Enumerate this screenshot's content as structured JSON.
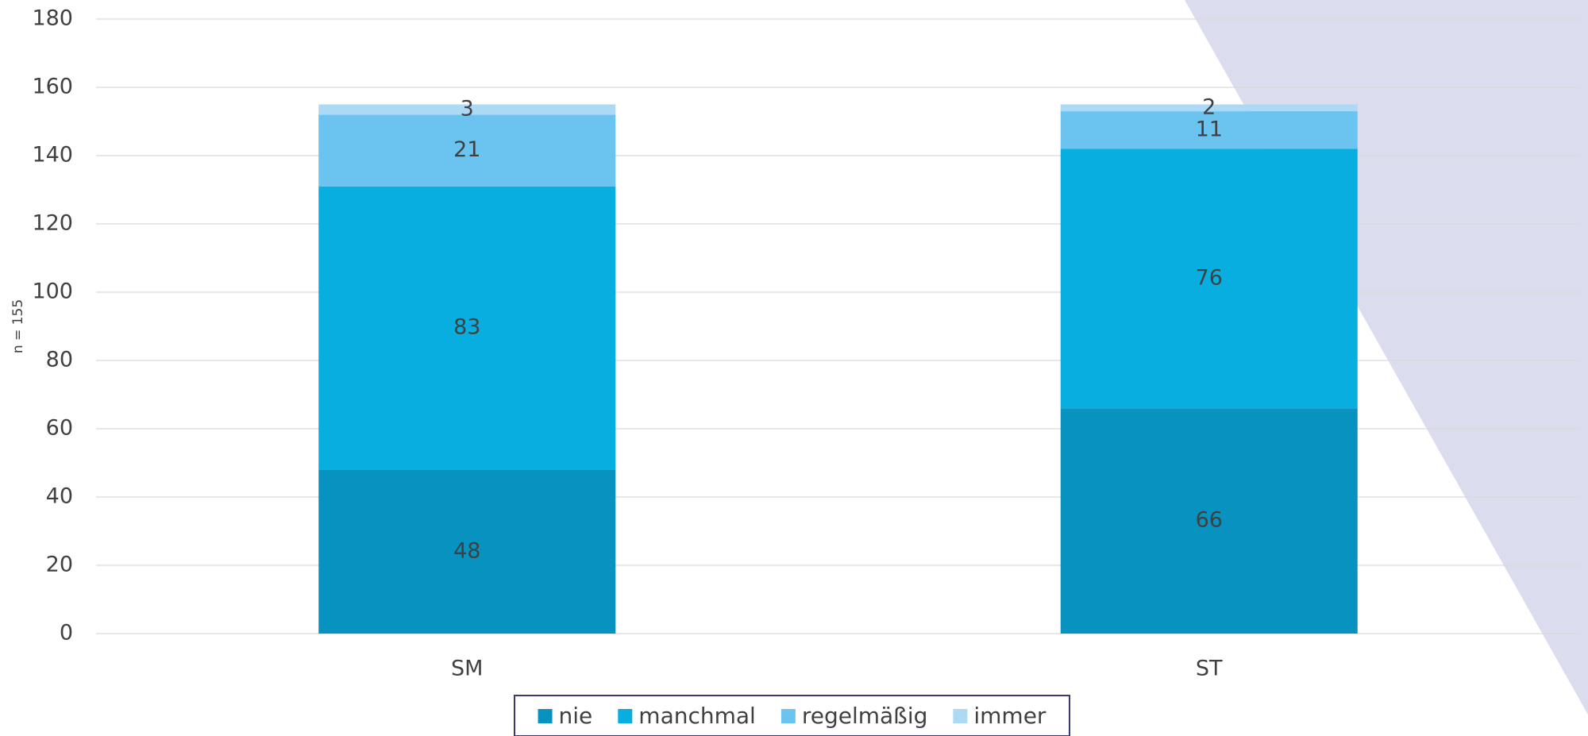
{
  "chart_data": {
    "type": "stacked_bar",
    "y_label": "n = 155",
    "categories": [
      "SM",
      "ST"
    ],
    "series": [
      {
        "name": "nie",
        "color": "#0792c0",
        "values": [
          48,
          66
        ]
      },
      {
        "name": "manchmal",
        "color": "#09aee0",
        "values": [
          83,
          76
        ]
      },
      {
        "name": "regelmäßig",
        "color": "#6bc4f0",
        "values": [
          21,
          11
        ]
      },
      {
        "name": "immer",
        "color": "#acdaf5",
        "values": [
          3,
          2
        ]
      }
    ],
    "ylim": [
      0,
      180
    ],
    "yticks": [
      0,
      20,
      40,
      60,
      80,
      100,
      120,
      140,
      160,
      180
    ],
    "grid": true,
    "legend": "bottom",
    "data_labels": true
  }
}
